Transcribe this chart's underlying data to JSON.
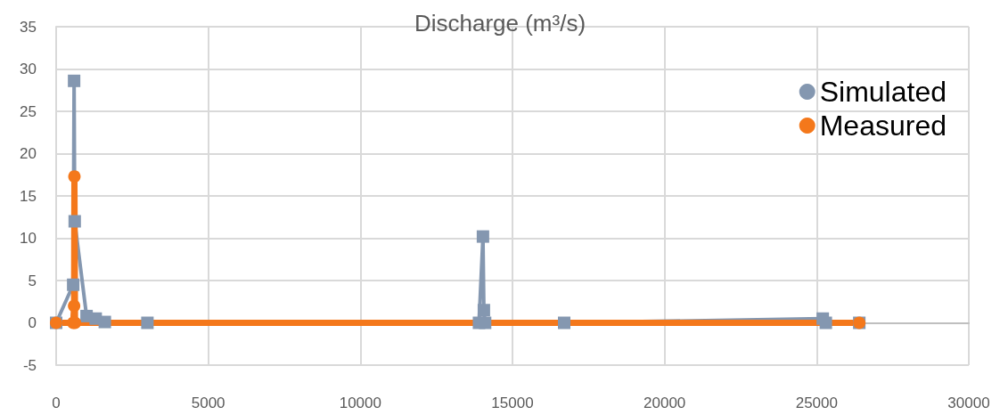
{
  "chart_data": {
    "type": "line",
    "title": "Discharge (m³/s)",
    "xlim": [
      0,
      30000
    ],
    "xticks": [
      0,
      5000,
      10000,
      15000,
      20000,
      25000,
      30000
    ],
    "ylim": [
      -5,
      35
    ],
    "yticks": [
      -5,
      0,
      5,
      10,
      15,
      20,
      25,
      30,
      35
    ],
    "grid": true,
    "legend": "top right",
    "line_style": "solid",
    "series": [
      {
        "name": "Simulated",
        "color": "#8497b0",
        "marker": "square",
        "x": [
          0,
          560,
          590,
          610,
          1000,
          1300,
          1600,
          3000,
          13900,
          14030,
          14060,
          14100,
          16700,
          25200,
          25300,
          26400
        ],
        "values": [
          0,
          4.5,
          28.6,
          12,
          0.8,
          0.5,
          0.1,
          0,
          0,
          10.2,
          1.5,
          0,
          0,
          0.5,
          0,
          0
        ]
      },
      {
        "name": "Measured",
        "color": "#f4781b",
        "marker": "circle",
        "x": [
          0,
          560,
          590,
          600,
          620,
          26400
        ],
        "values": [
          0,
          0,
          2,
          17.3,
          0,
          0
        ]
      }
    ]
  }
}
